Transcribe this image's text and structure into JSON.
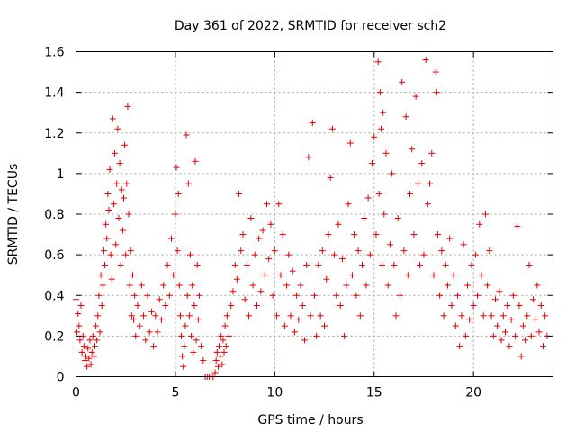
{
  "chart_data": {
    "type": "scatter",
    "title": "Day 361 of 2022, SRMTID for receiver sch2",
    "xlabel": "GPS time / hours",
    "ylabel": "SRMTID / TECUs",
    "xlim": [
      0,
      24
    ],
    "ylim": [
      0,
      1.6
    ],
    "xticks": [
      0,
      5,
      10,
      15,
      20
    ],
    "xtick_labels": [
      "0",
      "5",
      "10",
      "15",
      "20"
    ],
    "yticks": [
      0,
      0.2,
      0.4,
      0.6,
      0.8,
      1.0,
      1.2,
      1.4,
      1.6
    ],
    "ytick_labels": [
      "0",
      "0.2",
      "0.4",
      "0.6",
      "0.8",
      "1",
      "1.2",
      "1.4",
      "1.6"
    ],
    "grid": true,
    "marker": "+",
    "marker_color": "#e00000",
    "series": [
      {
        "name": "SRMTID sch2",
        "points": [
          [
            0.0,
            0.38
          ],
          [
            0.05,
            0.22
          ],
          [
            0.1,
            0.31
          ],
          [
            0.15,
            0.25
          ],
          [
            0.2,
            0.18
          ],
          [
            0.25,
            0.35
          ],
          [
            0.3,
            0.12
          ],
          [
            0.35,
            0.2
          ],
          [
            0.4,
            0.15
          ],
          [
            0.45,
            0.08
          ],
          [
            0.5,
            0.1
          ],
          [
            0.55,
            0.05
          ],
          [
            0.6,
            0.14
          ],
          [
            0.65,
            0.09
          ],
          [
            0.7,
            0.18
          ],
          [
            0.75,
            0.06
          ],
          [
            0.8,
            0.12
          ],
          [
            0.85,
            0.2
          ],
          [
            0.9,
            0.1
          ],
          [
            0.95,
            0.15
          ],
          [
            1.0,
            0.25
          ],
          [
            1.05,
            0.18
          ],
          [
            1.1,
            0.3
          ],
          [
            1.15,
            0.4
          ],
          [
            1.2,
            0.22
          ],
          [
            1.25,
            0.5
          ],
          [
            1.3,
            0.35
          ],
          [
            1.35,
            0.45
          ],
          [
            1.4,
            0.62
          ],
          [
            1.45,
            0.55
          ],
          [
            1.5,
            0.75
          ],
          [
            1.55,
            0.68
          ],
          [
            1.6,
            0.9
          ],
          [
            1.65,
            0.82
          ],
          [
            1.7,
            1.02
          ],
          [
            1.75,
            0.6
          ],
          [
            1.8,
            0.48
          ],
          [
            1.85,
            1.27
          ],
          [
            1.9,
            0.85
          ],
          [
            1.95,
            1.1
          ],
          [
            2.0,
            0.65
          ],
          [
            2.05,
            0.95
          ],
          [
            2.1,
            1.22
          ],
          [
            2.15,
            0.78
          ],
          [
            2.2,
            1.05
          ],
          [
            2.25,
            0.55
          ],
          [
            2.3,
            0.92
          ],
          [
            2.35,
            0.72
          ],
          [
            2.4,
            0.88
          ],
          [
            2.45,
            1.14
          ],
          [
            2.5,
            0.6
          ],
          [
            2.55,
            0.95
          ],
          [
            2.6,
            1.33
          ],
          [
            2.65,
            0.8
          ],
          [
            2.7,
            0.45
          ],
          [
            2.75,
            0.62
          ],
          [
            2.8,
            0.3
          ],
          [
            2.85,
            0.5
          ],
          [
            2.9,
            0.28
          ],
          [
            2.95,
            0.4
          ],
          [
            3.0,
            0.2
          ],
          [
            3.1,
            0.35
          ],
          [
            3.2,
            0.25
          ],
          [
            3.3,
            0.45
          ],
          [
            3.4,
            0.3
          ],
          [
            3.5,
            0.18
          ],
          [
            3.6,
            0.4
          ],
          [
            3.7,
            0.22
          ],
          [
            3.8,
            0.32
          ],
          [
            3.9,
            0.15
          ],
          [
            4.0,
            0.3
          ],
          [
            4.1,
            0.22
          ],
          [
            4.2,
            0.38
          ],
          [
            4.3,
            0.28
          ],
          [
            4.4,
            0.45
          ],
          [
            4.5,
            0.35
          ],
          [
            4.6,
            0.55
          ],
          [
            4.7,
            0.4
          ],
          [
            4.8,
            0.68
          ],
          [
            4.9,
            0.5
          ],
          [
            5.0,
            0.8
          ],
          [
            5.05,
            1.03
          ],
          [
            5.1,
            0.62
          ],
          [
            5.15,
            0.9
          ],
          [
            5.2,
            0.45
          ],
          [
            5.25,
            0.3
          ],
          [
            5.3,
            0.2
          ],
          [
            5.35,
            0.1
          ],
          [
            5.4,
            0.05
          ],
          [
            5.45,
            0.15
          ],
          [
            5.5,
            0.25
          ],
          [
            5.55,
            1.19
          ],
          [
            5.6,
            0.4
          ],
          [
            5.65,
            0.95
          ],
          [
            5.7,
            0.3
          ],
          [
            5.75,
            0.6
          ],
          [
            5.8,
            0.2
          ],
          [
            5.85,
            0.45
          ],
          [
            5.9,
            0.12
          ],
          [
            5.95,
            0.35
          ],
          [
            6.0,
            1.06
          ],
          [
            6.05,
            0.18
          ],
          [
            6.1,
            0.55
          ],
          [
            6.15,
            0.28
          ],
          [
            6.2,
            0.4
          ],
          [
            6.3,
            0.15
          ],
          [
            6.4,
            0.08
          ],
          [
            6.5,
            0.0
          ],
          [
            6.6,
            0.0
          ],
          [
            6.7,
            0.0
          ],
          [
            6.8,
            0.0
          ],
          [
            6.9,
            0.0
          ],
          [
            7.0,
            0.02
          ],
          [
            7.05,
            0.08
          ],
          [
            7.1,
            0.12
          ],
          [
            7.15,
            0.05
          ],
          [
            7.2,
            0.15
          ],
          [
            7.25,
            0.1
          ],
          [
            7.3,
            0.2
          ],
          [
            7.35,
            0.06
          ],
          [
            7.4,
            0.18
          ],
          [
            7.45,
            0.12
          ],
          [
            7.5,
            0.25
          ],
          [
            7.55,
            0.15
          ],
          [
            7.6,
            0.3
          ],
          [
            7.7,
            0.2
          ],
          [
            7.8,
            0.35
          ],
          [
            7.9,
            0.42
          ],
          [
            8.0,
            0.55
          ],
          [
            8.1,
            0.48
          ],
          [
            8.2,
            0.9
          ],
          [
            8.3,
            0.62
          ],
          [
            8.4,
            0.7
          ],
          [
            8.5,
            0.38
          ],
          [
            8.6,
            0.55
          ],
          [
            8.7,
            0.3
          ],
          [
            8.8,
            0.78
          ],
          [
            8.9,
            0.45
          ],
          [
            9.0,
            0.6
          ],
          [
            9.1,
            0.35
          ],
          [
            9.2,
            0.68
          ],
          [
            9.3,
            0.42
          ],
          [
            9.4,
            0.72
          ],
          [
            9.5,
            0.5
          ],
          [
            9.6,
            0.85
          ],
          [
            9.7,
            0.58
          ],
          [
            9.8,
            0.75
          ],
          [
            9.9,
            0.4
          ],
          [
            10.0,
            0.62
          ],
          [
            10.1,
            0.3
          ],
          [
            10.2,
            0.85
          ],
          [
            10.3,
            0.5
          ],
          [
            10.4,
            0.7
          ],
          [
            10.5,
            0.25
          ],
          [
            10.6,
            0.45
          ],
          [
            10.7,
            0.6
          ],
          [
            10.8,
            0.3
          ],
          [
            10.9,
            0.52
          ],
          [
            11.0,
            0.22
          ],
          [
            11.1,
            0.4
          ],
          [
            11.2,
            0.28
          ],
          [
            11.3,
            0.45
          ],
          [
            11.4,
            0.35
          ],
          [
            11.5,
            0.18
          ],
          [
            11.6,
            0.55
          ],
          [
            11.7,
            1.08
          ],
          [
            11.8,
            0.3
          ],
          [
            11.9,
            1.25
          ],
          [
            12.0,
            0.4
          ],
          [
            12.1,
            0.2
          ],
          [
            12.2,
            0.55
          ],
          [
            12.3,
            0.3
          ],
          [
            12.4,
            0.62
          ],
          [
            12.5,
            0.25
          ],
          [
            12.6,
            0.48
          ],
          [
            12.7,
            0.7
          ],
          [
            12.8,
            0.98
          ],
          [
            12.9,
            1.22
          ],
          [
            13.0,
            0.6
          ],
          [
            13.1,
            0.4
          ],
          [
            13.2,
            0.75
          ],
          [
            13.3,
            0.35
          ],
          [
            13.4,
            0.58
          ],
          [
            13.5,
            0.2
          ],
          [
            13.6,
            0.45
          ],
          [
            13.7,
            0.85
          ],
          [
            13.8,
            1.15
          ],
          [
            13.9,
            0.5
          ],
          [
            14.0,
            0.7
          ],
          [
            14.1,
            0.4
          ],
          [
            14.2,
            0.62
          ],
          [
            14.3,
            0.3
          ],
          [
            14.4,
            0.55
          ],
          [
            14.5,
            0.78
          ],
          [
            14.6,
            0.45
          ],
          [
            14.7,
            0.88
          ],
          [
            14.8,
            0.6
          ],
          [
            14.9,
            1.05
          ],
          [
            15.0,
            1.18
          ],
          [
            15.1,
            0.7
          ],
          [
            15.2,
            1.55
          ],
          [
            15.25,
            0.9
          ],
          [
            15.3,
            1.4
          ],
          [
            15.35,
            1.22
          ],
          [
            15.4,
            0.55
          ],
          [
            15.45,
            1.3
          ],
          [
            15.5,
            0.8
          ],
          [
            15.6,
            1.1
          ],
          [
            15.7,
            0.45
          ],
          [
            15.8,
            0.65
          ],
          [
            15.9,
            1.0
          ],
          [
            16.0,
            0.55
          ],
          [
            16.1,
            0.3
          ],
          [
            16.2,
            0.78
          ],
          [
            16.3,
            0.4
          ],
          [
            16.4,
            1.45
          ],
          [
            16.5,
            0.62
          ],
          [
            16.6,
            1.28
          ],
          [
            16.7,
            0.5
          ],
          [
            16.8,
            0.9
          ],
          [
            16.9,
            1.12
          ],
          [
            17.0,
            0.7
          ],
          [
            17.1,
            1.38
          ],
          [
            17.2,
            0.95
          ],
          [
            17.3,
            0.55
          ],
          [
            17.4,
            1.05
          ],
          [
            17.5,
            0.6
          ],
          [
            17.6,
            1.56
          ],
          [
            17.7,
            0.85
          ],
          [
            17.8,
            0.95
          ],
          [
            17.9,
            1.1
          ],
          [
            18.0,
            0.5
          ],
          [
            18.1,
            1.5
          ],
          [
            18.15,
            1.4
          ],
          [
            18.2,
            0.7
          ],
          [
            18.3,
            0.4
          ],
          [
            18.4,
            0.62
          ],
          [
            18.5,
            0.3
          ],
          [
            18.6,
            0.55
          ],
          [
            18.7,
            0.45
          ],
          [
            18.8,
            0.68
          ],
          [
            18.9,
            0.35
          ],
          [
            19.0,
            0.5
          ],
          [
            19.1,
            0.25
          ],
          [
            19.2,
            0.4
          ],
          [
            19.3,
            0.15
          ],
          [
            19.4,
            0.3
          ],
          [
            19.5,
            0.65
          ],
          [
            19.6,
            0.2
          ],
          [
            19.7,
            0.45
          ],
          [
            19.8,
            0.28
          ],
          [
            19.9,
            0.55
          ],
          [
            20.0,
            0.35
          ],
          [
            20.1,
            0.6
          ],
          [
            20.2,
            0.4
          ],
          [
            20.3,
            0.75
          ],
          [
            20.4,
            0.5
          ],
          [
            20.5,
            0.3
          ],
          [
            20.6,
            0.8
          ],
          [
            20.7,
            0.45
          ],
          [
            20.8,
            0.62
          ],
          [
            20.9,
            0.3
          ],
          [
            21.0,
            0.2
          ],
          [
            21.1,
            0.38
          ],
          [
            21.2,
            0.25
          ],
          [
            21.3,
            0.42
          ],
          [
            21.4,
            0.18
          ],
          [
            21.5,
            0.3
          ],
          [
            21.6,
            0.22
          ],
          [
            21.7,
            0.35
          ],
          [
            21.8,
            0.15
          ],
          [
            21.9,
            0.28
          ],
          [
            22.0,
            0.4
          ],
          [
            22.1,
            0.2
          ],
          [
            22.2,
            0.74
          ],
          [
            22.3,
            0.35
          ],
          [
            22.4,
            0.1
          ],
          [
            22.5,
            0.25
          ],
          [
            22.6,
            0.18
          ],
          [
            22.7,
            0.3
          ],
          [
            22.8,
            0.55
          ],
          [
            22.9,
            0.2
          ],
          [
            23.0,
            0.38
          ],
          [
            23.1,
            0.28
          ],
          [
            23.2,
            0.45
          ],
          [
            23.3,
            0.22
          ],
          [
            23.4,
            0.35
          ],
          [
            23.5,
            0.15
          ],
          [
            23.6,
            0.3
          ],
          [
            23.7,
            0.2
          ]
        ]
      }
    ]
  }
}
